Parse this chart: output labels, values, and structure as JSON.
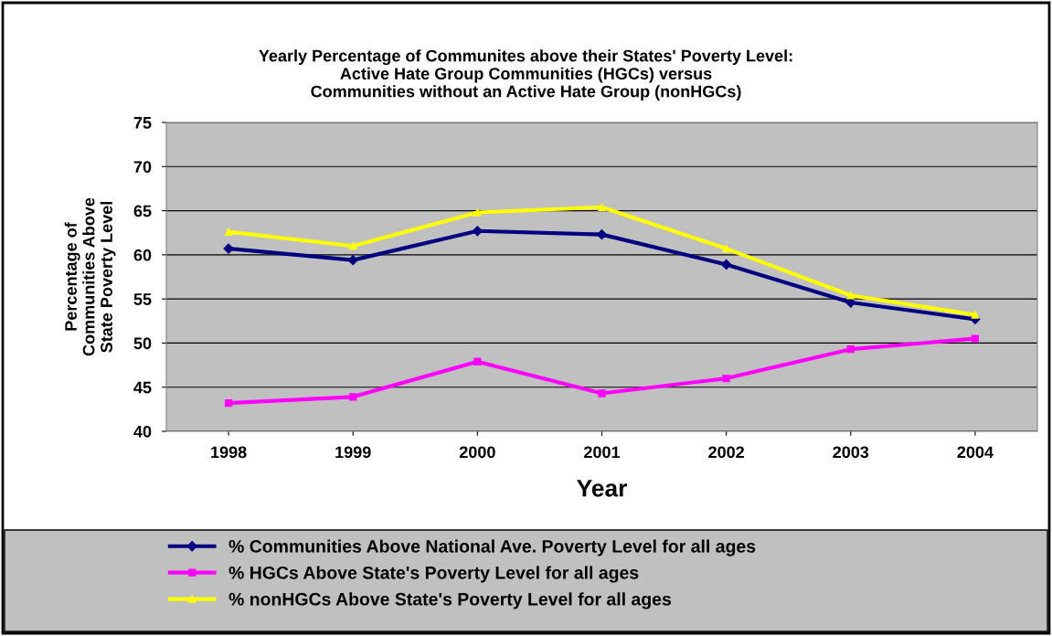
{
  "chart_data": {
    "type": "line",
    "title": "Yearly Percentage of Communites above their States' Poverty Level:\nActive Hate Group Communities (HGCs) versus\nCommunities without an Active Hate Group (nonHGCs)",
    "xlabel": "Year",
    "ylabel": "Percentage of\nCommunities Above\nState Poverty Level",
    "categories": [
      "1998",
      "1999",
      "2000",
      "2001",
      "2002",
      "2003",
      "2004"
    ],
    "series": [
      {
        "name": "% Communities Above National Ave. Poverty Level for all ages",
        "color": "#000080",
        "marker": "diamond",
        "values": [
          60.7,
          59.4,
          62.7,
          62.3,
          58.9,
          54.6,
          52.7
        ]
      },
      {
        "name": "% HGCs Above State's Poverty Level for all ages",
        "color": "#ff00ff",
        "marker": "square",
        "values": [
          43.2,
          43.9,
          47.9,
          44.3,
          46.0,
          49.3,
          50.5
        ]
      },
      {
        "name": "% nonHGCs Above State's Poverty Level for all ages",
        "color": "#ffff00",
        "marker": "triangle",
        "values": [
          62.6,
          61.0,
          64.8,
          65.4,
          60.7,
          55.4,
          53.2
        ]
      }
    ],
    "ylim": [
      40,
      75
    ],
    "yticks": [
      40,
      45,
      50,
      55,
      60,
      65,
      70,
      75
    ],
    "grid": "y",
    "legend": "bottom",
    "line_style": "solid"
  }
}
